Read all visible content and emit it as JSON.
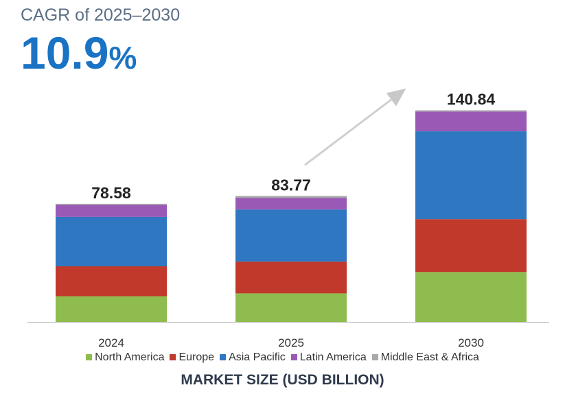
{
  "header": {
    "cagr_label": "CAGR of 2025–2030",
    "cagr_number": "10.9",
    "cagr_percent": "%"
  },
  "chart_data": {
    "type": "bar",
    "stacked": true,
    "categories": [
      "2024",
      "2025",
      "2030"
    ],
    "totals": [
      "78.58",
      "83.77",
      "140.84"
    ],
    "series": [
      {
        "name": "North America",
        "color": "#8fbc4e",
        "values": [
          17.1,
          19.0,
          33.2
        ]
      },
      {
        "name": "Europe",
        "color": "#c0392b",
        "values": [
          19.9,
          21.1,
          35.2
        ]
      },
      {
        "name": "Asia Pacific",
        "color": "#2f77c0",
        "values": [
          32.9,
          34.7,
          58.5
        ]
      },
      {
        "name": "Latin America",
        "color": "#9b59b6",
        "values": [
          8.0,
          7.8,
          13.1
        ]
      },
      {
        "name": "Middle East & Africa",
        "color": "#a9a9a9",
        "values": [
          0.7,
          1.2,
          0.8
        ]
      }
    ],
    "xlabel": "MARKET SIZE (USD BILLION)",
    "ylim": [
      0,
      145
    ],
    "grid": false,
    "legend": "bottom",
    "trend_arrow": {
      "from": "2025",
      "to": "2030"
    }
  }
}
